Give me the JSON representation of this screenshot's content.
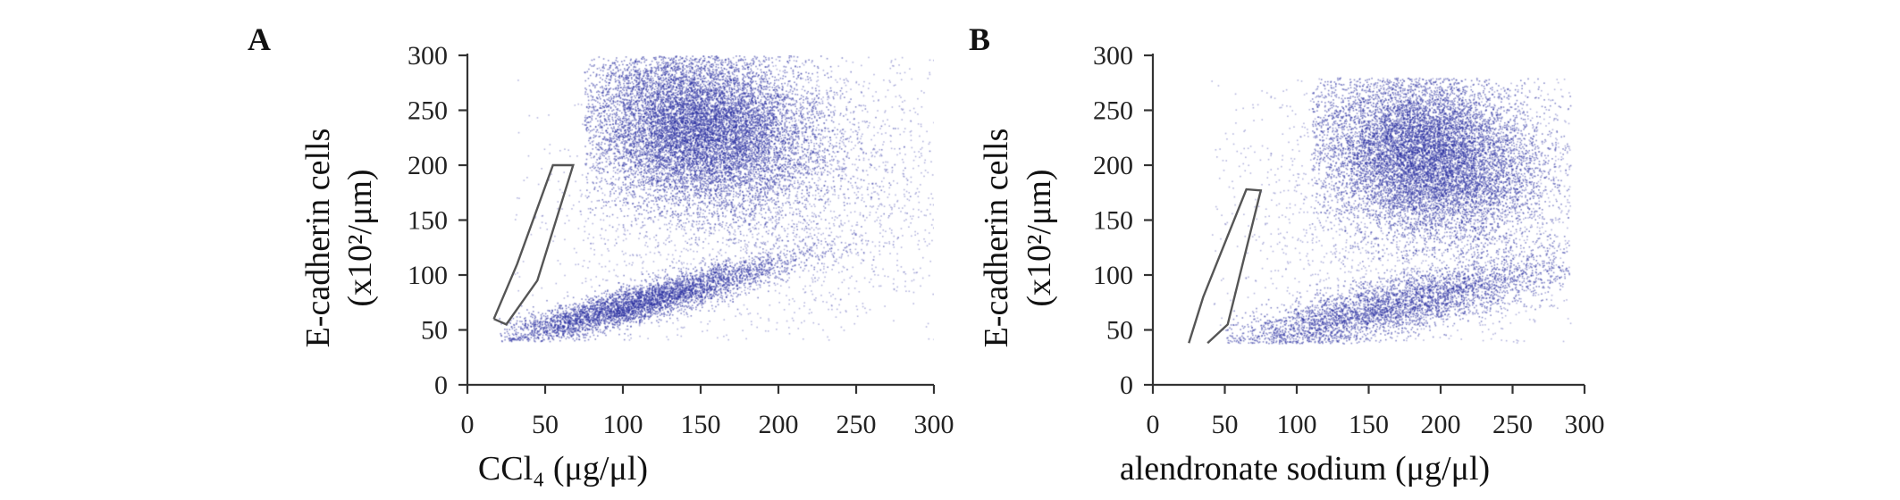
{
  "chart_data": [
    {
      "panel": "A",
      "type": "scatter",
      "xlabel": "CCl₄  (μg/μl)",
      "ylabel_line1": "E-cadherin cells",
      "ylabel_line2": "(x10²/μm)",
      "xlim": [
        0,
        300
      ],
      "ylim": [
        0,
        300
      ],
      "x_ticks": [
        "0",
        "50",
        "100",
        "150",
        "200",
        "250",
        "300"
      ],
      "y_ticks": [
        "0",
        "50",
        "100",
        "150",
        "200",
        "250",
        "300"
      ],
      "grid": false,
      "point_color": "#2a2fa0",
      "clusters": [
        {
          "name": "",
          "center": [
            150,
            235
          ],
          "spread": [
            35,
            40
          ],
          "angle_deg": 42,
          "count": 11000,
          "x_range": [
            75,
            300
          ],
          "y_range": [
            125,
            300
          ]
        },
        {
          "name": "",
          "center": [
            110,
            75
          ],
          "spread": [
            55,
            8
          ],
          "angle_deg": 22,
          "count": 4500,
          "x_range": [
            20,
            300
          ],
          "y_range": [
            40,
            140
          ]
        },
        {
          "name": "",
          "center": [
            200,
            170
          ],
          "spread": [
            80,
            70
          ],
          "angle_deg": 30,
          "count": 3000,
          "x_range": [
            30,
            300
          ],
          "y_range": [
            40,
            300
          ]
        }
      ],
      "gate": [
        [
          17,
          60
        ],
        [
          32,
          110
        ],
        [
          55,
          200
        ],
        [
          68,
          200
        ],
        [
          45,
          95
        ],
        [
          25,
          55
        ],
        [
          17,
          60
        ]
      ]
    },
    {
      "panel": "B",
      "type": "scatter",
      "xlabel": "alendronate sodium (μg/μl)",
      "ylabel_line1": "E-cadherin cells",
      "ylabel_line2": "(x10²/μm)",
      "xlim": [
        0,
        300
      ],
      "ylim": [
        0,
        300
      ],
      "x_ticks": [
        "0",
        "50",
        "100",
        "150",
        "200",
        "250",
        "300"
      ],
      "y_ticks": [
        "0",
        "50",
        "100",
        "150",
        "200",
        "250",
        "300"
      ],
      "grid": false,
      "point_color": "#2a2fa0",
      "clusters": [
        {
          "name": "",
          "center": [
            190,
            210
          ],
          "spread": [
            35,
            42
          ],
          "angle_deg": 45,
          "count": 10000,
          "x_range": [
            110,
            290
          ],
          "y_range": [
            110,
            280
          ]
        },
        {
          "name": "",
          "center": [
            160,
            70
          ],
          "spread": [
            70,
            12
          ],
          "angle_deg": 18,
          "count": 4200,
          "x_range": [
            50,
            290
          ],
          "y_range": [
            38,
            140
          ]
        },
        {
          "name": "",
          "center": [
            200,
            160
          ],
          "spread": [
            80,
            70
          ],
          "angle_deg": 30,
          "count": 2800,
          "x_range": [
            40,
            290
          ],
          "y_range": [
            38,
            280
          ]
        }
      ],
      "gate": [
        [
          25,
          38
        ],
        [
          35,
          80
        ],
        [
          65,
          178
        ],
        [
          75,
          177
        ],
        [
          52,
          55
        ],
        [
          38,
          38
        ]
      ]
    }
  ]
}
